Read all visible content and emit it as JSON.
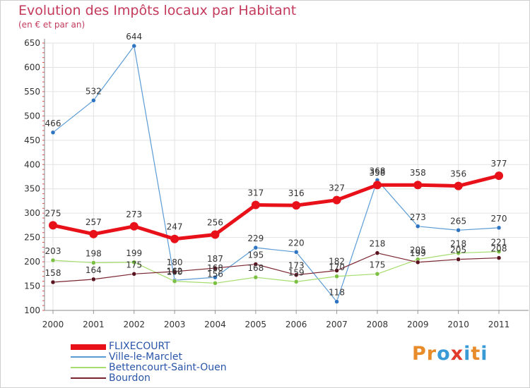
{
  "header": {
    "title": "Evolution des Impôts locaux par Habitant",
    "subtitle": "(en € et par an)"
  },
  "brand": {
    "logo_letters": [
      "P",
      "r",
      "o",
      "x",
      "i",
      "t",
      "i"
    ],
    "logo_colors": [
      "#e88b2a",
      "#e88b2a",
      "#3a9ad6",
      "#e23a2a",
      "#3a9ad6",
      "#e88b2a",
      "#3a9ad6"
    ]
  },
  "chart_data": {
    "type": "line",
    "title": "Evolution des Impôts locaux par Habitant",
    "ylabel": "(en € et par an)",
    "xlabel": "",
    "ylim": [
      100,
      650
    ],
    "yticks": [
      100,
      150,
      200,
      250,
      300,
      350,
      400,
      450,
      500,
      550,
      600,
      650
    ],
    "categories": [
      "2000",
      "2001",
      "2002",
      "2003",
      "2004",
      "2005",
      "2006",
      "2007",
      "2008",
      "2009",
      "2010",
      "2011"
    ],
    "legend_position": "bottom-left",
    "series": [
      {
        "name": "Ville-le-Marclet",
        "color": "#5b9bd5",
        "marker": "#2e74c0",
        "width": 1.2,
        "r": 3,
        "values": [
          466,
          532,
          644,
          162,
          168,
          229,
          220,
          118,
          368,
          273,
          265,
          270
        ]
      },
      {
        "name": "Bettencourt-Saint-Ouen",
        "color": "#a6dd6e",
        "marker": "#7bc043",
        "width": 1.2,
        "r": 3,
        "values": [
          203,
          198,
          199,
          160,
          156,
          168,
          159,
          170,
          175,
          205,
          218,
          221
        ]
      },
      {
        "name": "Bourdon",
        "color": "#7a2430",
        "marker": "#5a1420",
        "width": 1.2,
        "r": 3,
        "values": [
          158,
          164,
          175,
          180,
          187,
          195,
          173,
          182,
          218,
          199,
          205,
          208
        ]
      },
      {
        "name": "FLIXECOURT",
        "color": "#e8111a",
        "marker": "#e8111a",
        "width": 5,
        "r": 6,
        "values": [
          275,
          257,
          273,
          247,
          256,
          317,
          316,
          327,
          358,
          358,
          356,
          377
        ]
      }
    ],
    "data_labels": [
      {
        "series": "Ville-le-Marclet",
        "values": [
          "466",
          "532",
          "644",
          "162",
          "168",
          "229",
          "220",
          "118",
          "368",
          "273",
          "265",
          "270"
        ]
      },
      {
        "series": "Bettencourt-Saint-Ouen",
        "values": [
          "203",
          "198",
          "199",
          "160",
          "156",
          "168",
          "159",
          "170",
          "175",
          "205",
          "218",
          "221"
        ]
      },
      {
        "series": "Bourdon",
        "values": [
          "158",
          "164",
          "175",
          "180",
          "187",
          "195",
          "173",
          "182",
          "218",
          "199",
          "205",
          "208"
        ]
      },
      {
        "series": "FLIXECOURT",
        "values": [
          "275",
          "257",
          "273",
          "247",
          "256",
          "317",
          "316",
          "327",
          "358",
          "358",
          "356",
          "377"
        ]
      }
    ]
  },
  "legend": {
    "items": [
      {
        "label": "FLIXECOURT",
        "color": "#e8111a",
        "thick": true
      },
      {
        "label": "Ville-le-Marclet",
        "color": "#5b9bd5",
        "thick": false
      },
      {
        "label": "Bettencourt-Saint-Ouen",
        "color": "#a6dd6e",
        "thick": false
      },
      {
        "label": "Bourdon",
        "color": "#7a2430",
        "thick": false
      }
    ]
  }
}
